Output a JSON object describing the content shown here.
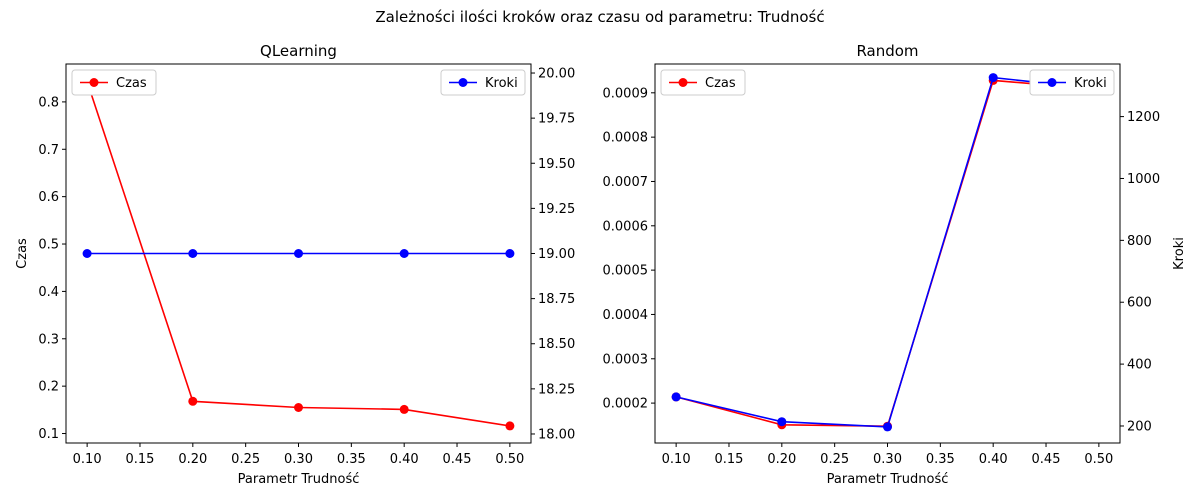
{
  "figure": {
    "suptitle": "Zależności ilości kroków oraz czasu od parametru: Trudność"
  },
  "colors": {
    "czas": "#ff0000",
    "kroki": "#0000ff"
  },
  "chart_data": [
    {
      "type": "line",
      "title": "QLearning",
      "xlabel": "Parametr Trudność",
      "ylabel": "Czas",
      "y2label": "",
      "x": [
        0.1,
        0.2,
        0.3,
        0.4,
        0.5
      ],
      "xlim": [
        0.08,
        0.52
      ],
      "xticks": [
        "0.10",
        "0.15",
        "0.20",
        "0.25",
        "0.30",
        "0.35",
        "0.40",
        "0.45",
        "0.50"
      ],
      "ylim": [
        0.08,
        0.88
      ],
      "yticks": [
        "0.1",
        "0.2",
        "0.3",
        "0.4",
        "0.5",
        "0.6",
        "0.7",
        "0.8"
      ],
      "y2lim": [
        17.95,
        20.05
      ],
      "y2ticks": [
        "18.00",
        "18.25",
        "18.50",
        "18.75",
        "19.00",
        "19.25",
        "19.50",
        "19.75",
        "20.00"
      ],
      "series": [
        {
          "name": "Czas",
          "axis": "left",
          "color": "#ff0000",
          "values": [
            0.843,
            0.168,
            0.155,
            0.151,
            0.116
          ]
        },
        {
          "name": "Kroki",
          "axis": "right",
          "color": "#0000ff",
          "values": [
            19,
            19,
            19,
            19,
            19
          ]
        }
      ],
      "legends": [
        {
          "entries": [
            "Czas"
          ],
          "placement": "upper left"
        },
        {
          "entries": [
            "Kroki"
          ],
          "placement": "upper right"
        }
      ],
      "grid": false
    },
    {
      "type": "line",
      "title": "Random",
      "xlabel": "Parametr Trudność",
      "ylabel": "",
      "y2label": "Kroki",
      "x": [
        0.1,
        0.2,
        0.3,
        0.4,
        0.5
      ],
      "xlim": [
        0.08,
        0.52
      ],
      "xticks": [
        "0.10",
        "0.15",
        "0.20",
        "0.25",
        "0.30",
        "0.35",
        "0.40",
        "0.45",
        "0.50"
      ],
      "ylim": [
        0.00011,
        0.000965
      ],
      "yticks": [
        "0.0002",
        "0.0003",
        "0.0004",
        "0.0005",
        "0.0006",
        "0.0007",
        "0.0008",
        "0.0009"
      ],
      "y2lim": [
        145,
        1370
      ],
      "y2ticks": [
        "200",
        "400",
        "600",
        "800",
        "1000",
        "1200"
      ],
      "series": [
        {
          "name": "Czas",
          "axis": "left",
          "color": "#ff0000",
          "values": [
            0.000214,
            0.000151,
            0.000148,
            0.000928,
            0.000908
          ]
        },
        {
          "name": "Kroki",
          "axis": "right",
          "color": "#0000ff",
          "values": [
            294,
            214,
            197,
            1326,
            1290
          ]
        }
      ],
      "legends": [
        {
          "entries": [
            "Czas"
          ],
          "placement": "upper left"
        },
        {
          "entries": [
            "Kroki"
          ],
          "placement": "upper right"
        }
      ],
      "grid": false
    }
  ]
}
